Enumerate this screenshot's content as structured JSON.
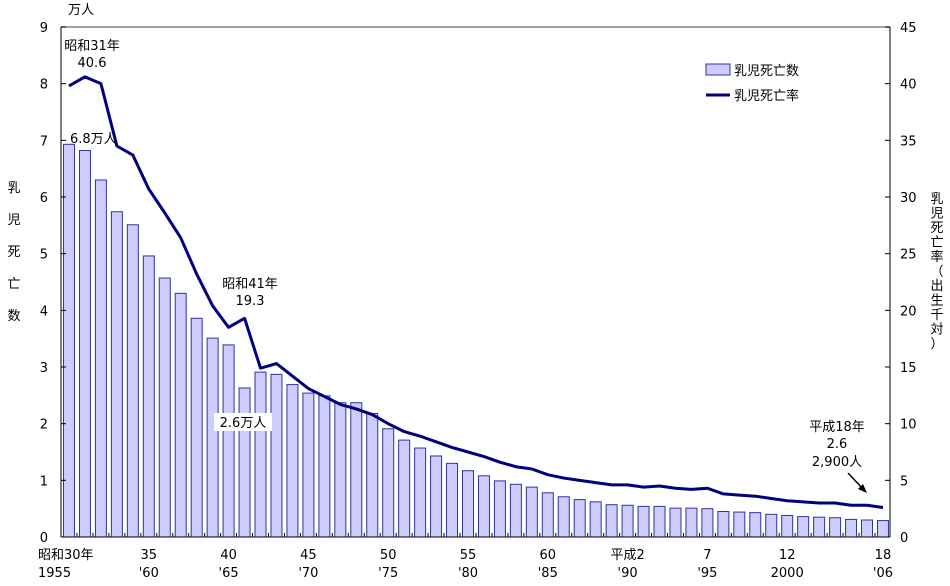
{
  "chart_data": {
    "type": "bar+line",
    "left_unit": "万人",
    "left_axis_title": "乳児死亡数",
    "right_axis_title": "乳児死亡率（出生千対）",
    "left_ylim": [
      0,
      9
    ],
    "right_ylim": [
      0,
      45
    ],
    "left_ticks": [
      "0",
      "1",
      "2",
      "3",
      "4",
      "5",
      "6",
      "7",
      "8",
      "9"
    ],
    "right_ticks": [
      "0",
      "5",
      "10",
      "15",
      "20",
      "25",
      "30",
      "35",
      "40",
      "45"
    ],
    "years": [
      1955,
      1956,
      1957,
      1958,
      1959,
      1960,
      1961,
      1962,
      1963,
      1964,
      1965,
      1966,
      1967,
      1968,
      1969,
      1970,
      1971,
      1972,
      1973,
      1974,
      1975,
      1976,
      1977,
      1978,
      1979,
      1980,
      1981,
      1982,
      1983,
      1984,
      1985,
      1986,
      1987,
      1988,
      1989,
      1990,
      1991,
      1992,
      1993,
      1994,
      1995,
      1996,
      1997,
      1998,
      1999,
      2000,
      2001,
      2002,
      2003,
      2004,
      2005,
      2006
    ],
    "x_tick_labels": [
      {
        "year": 1955,
        "top": "昭和30年",
        "bottom": "1955"
      },
      {
        "year": 1960,
        "top": "35",
        "bottom": "'60"
      },
      {
        "year": 1965,
        "top": "40",
        "bottom": "'65"
      },
      {
        "year": 1970,
        "top": "45",
        "bottom": "'70"
      },
      {
        "year": 1975,
        "top": "50",
        "bottom": "'75"
      },
      {
        "year": 1980,
        "top": "55",
        "bottom": "'80"
      },
      {
        "year": 1985,
        "top": "60",
        "bottom": "'85"
      },
      {
        "year": 1990,
        "top": "平成2",
        "bottom": "'90"
      },
      {
        "year": 1995,
        "top": "7",
        "bottom": "'95"
      },
      {
        "year": 2000,
        "top": "12",
        "bottom": "2000"
      },
      {
        "year": 2006,
        "top": "18",
        "bottom": "'06"
      }
    ],
    "series": [
      {
        "name": "乳児死亡数",
        "type": "bar",
        "axis": "left",
        "color": "#ccccff",
        "stroke": "#333399",
        "values": [
          6.93,
          6.82,
          6.3,
          5.74,
          5.51,
          4.96,
          4.57,
          4.3,
          3.86,
          3.51,
          3.39,
          2.63,
          2.91,
          2.87,
          2.69,
          2.54,
          2.49,
          2.37,
          2.37,
          2.18,
          1.91,
          1.71,
          1.57,
          1.43,
          1.3,
          1.17,
          1.08,
          0.99,
          0.93,
          0.88,
          0.78,
          0.71,
          0.66,
          0.62,
          0.57,
          0.56,
          0.54,
          0.54,
          0.51,
          0.51,
          0.5,
          0.45,
          0.44,
          0.43,
          0.4,
          0.38,
          0.36,
          0.35,
          0.34,
          0.31,
          0.3,
          0.29
        ]
      },
      {
        "name": "乳児死亡率",
        "type": "line",
        "axis": "right",
        "color": "#000080",
        "values": [
          39.8,
          40.6,
          40.0,
          34.5,
          33.7,
          30.7,
          28.6,
          26.4,
          23.2,
          20.4,
          18.5,
          19.3,
          14.9,
          15.3,
          14.2,
          13.1,
          12.4,
          11.7,
          11.3,
          10.8,
          10.0,
          9.3,
          8.9,
          8.4,
          7.9,
          7.5,
          7.1,
          6.6,
          6.2,
          6.0,
          5.5,
          5.2,
          5.0,
          4.8,
          4.6,
          4.6,
          4.4,
          4.5,
          4.3,
          4.2,
          4.3,
          3.8,
          3.7,
          3.6,
          3.4,
          3.2,
          3.1,
          3.0,
          3.0,
          2.8,
          2.8,
          2.6
        ]
      }
    ],
    "legend_position": "top-right",
    "annotations": {
      "a1956_year": "昭和31年",
      "a1956_rate": "40.6",
      "a1955_count": "6.8万人",
      "a1966_year": "昭和41年",
      "a1966_rate": "19.3",
      "a1966_count": "2.6万人",
      "a2006_year": "平成18年",
      "a2006_rate": "2.6",
      "a2006_count": "2,900人"
    }
  }
}
